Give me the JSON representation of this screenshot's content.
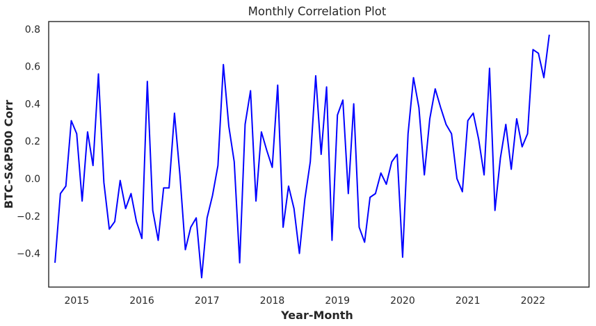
{
  "chart_data": {
    "type": "line",
    "title": "Monthly Correlation Plot",
    "xlabel": "Year-Month",
    "ylabel": "BTC-S&P500 Corr",
    "xlim": [
      2014.57,
      2022.86
    ],
    "ylim": [
      -0.58,
      0.84
    ],
    "x_ticks": [
      2015,
      2016,
      2017,
      2018,
      2019,
      2020,
      2021,
      2022
    ],
    "x_tick_labels": [
      "2015",
      "2016",
      "2017",
      "2018",
      "2019",
      "2020",
      "2021",
      "2022"
    ],
    "y_ticks": [
      -0.4,
      -0.2,
      0.0,
      0.2,
      0.4,
      0.6,
      0.8
    ],
    "y_tick_labels": [
      "−0.4",
      "−0.2",
      "0.0",
      "0.2",
      "0.4",
      "0.6",
      "0.8"
    ],
    "grid": false,
    "series": [
      {
        "color": "#0000ff",
        "x": [
          "2014-09",
          "2014-10",
          "2014-11",
          "2014-12",
          "2015-01",
          "2015-02",
          "2015-03",
          "2015-04",
          "2015-05",
          "2015-06",
          "2015-07",
          "2015-08",
          "2015-09",
          "2015-10",
          "2015-11",
          "2015-12",
          "2016-01",
          "2016-02",
          "2016-03",
          "2016-04",
          "2016-05",
          "2016-06",
          "2016-07",
          "2016-08",
          "2016-09",
          "2016-10",
          "2016-11",
          "2016-12",
          "2017-01",
          "2017-02",
          "2017-03",
          "2017-04",
          "2017-05",
          "2017-06",
          "2017-07",
          "2017-08",
          "2017-09",
          "2017-10",
          "2017-11",
          "2017-12",
          "2018-01",
          "2018-02",
          "2018-03",
          "2018-04",
          "2018-05",
          "2018-06",
          "2018-07",
          "2018-08",
          "2018-09",
          "2018-10",
          "2018-11",
          "2018-12",
          "2019-01",
          "2019-02",
          "2019-03",
          "2019-04",
          "2019-05",
          "2019-06",
          "2019-07",
          "2019-08",
          "2019-09",
          "2019-10",
          "2019-11",
          "2019-12",
          "2020-01",
          "2020-02",
          "2020-03",
          "2020-04",
          "2020-05",
          "2020-06",
          "2020-07",
          "2020-08",
          "2020-09",
          "2020-10",
          "2020-11",
          "2020-12",
          "2021-01",
          "2021-02",
          "2021-03",
          "2021-04",
          "2021-05",
          "2021-06",
          "2021-07",
          "2021-08",
          "2021-09",
          "2021-10",
          "2021-11",
          "2021-12",
          "2022-01",
          "2022-02",
          "2022-03",
          "2022-04"
        ],
        "y": [
          -0.45,
          -0.08,
          -0.04,
          0.31,
          0.24,
          -0.12,
          0.25,
          0.07,
          0.56,
          -0.02,
          -0.27,
          -0.23,
          -0.01,
          -0.16,
          -0.08,
          -0.23,
          -0.32,
          0.52,
          -0.17,
          -0.33,
          -0.05,
          -0.05,
          0.35,
          0.02,
          -0.38,
          -0.26,
          -0.21,
          -0.53,
          -0.21,
          -0.09,
          0.07,
          0.61,
          0.28,
          0.09,
          -0.45,
          0.29,
          0.47,
          -0.12,
          0.25,
          0.15,
          0.06,
          0.5,
          -0.26,
          -0.04,
          -0.16,
          -0.4,
          -0.11,
          0.09,
          0.55,
          0.13,
          0.49,
          -0.33,
          0.34,
          0.42,
          -0.08,
          0.4,
          -0.26,
          -0.34,
          -0.1,
          -0.08,
          0.03,
          -0.03,
          0.09,
          0.13,
          -0.42,
          0.24,
          0.54,
          0.38,
          0.02,
          0.32,
          0.48,
          0.38,
          0.29,
          0.24,
          0.0,
          -0.07,
          0.31,
          0.35,
          0.21,
          0.02,
          0.59,
          -0.17,
          0.11,
          0.29,
          0.05,
          0.32,
          0.17,
          0.24,
          0.69,
          0.67,
          0.54,
          0.77
        ]
      }
    ]
  }
}
